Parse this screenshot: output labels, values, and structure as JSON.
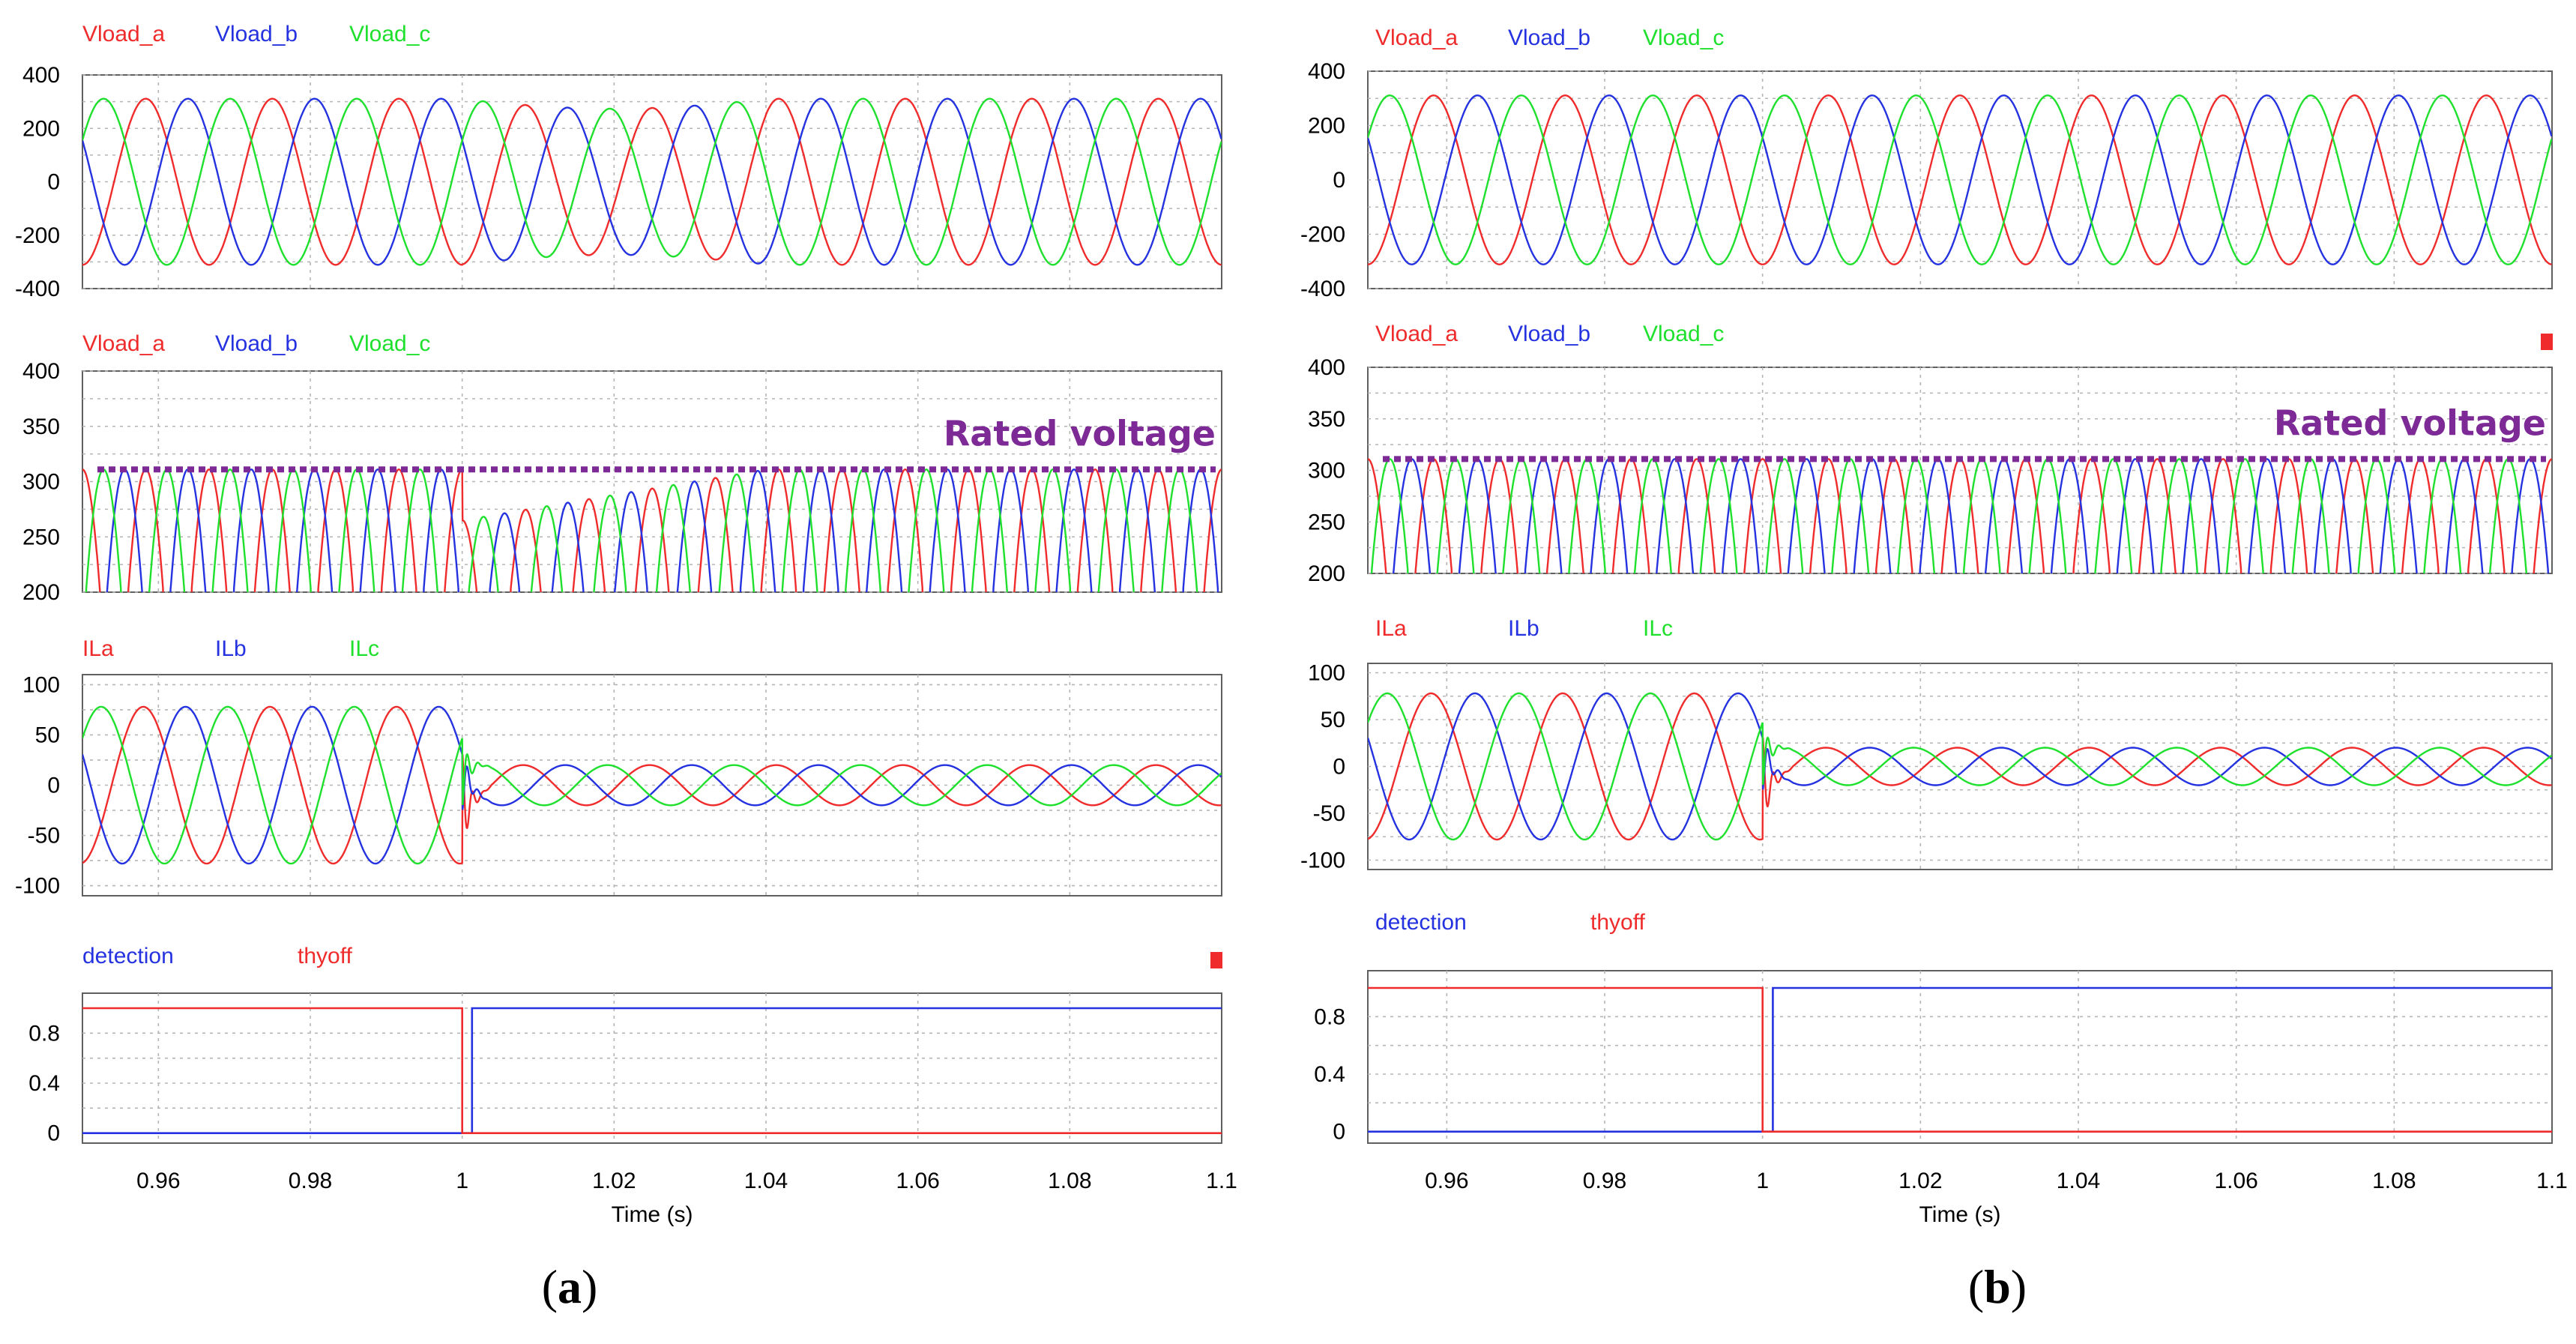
{
  "colors": {
    "a": "#ef2b2b",
    "b": "#2432e0",
    "c": "#1ee02d",
    "rated": "#7d2a96",
    "grid": "#b5b5b5",
    "frame": "#606060"
  },
  "figures": [
    {
      "caption_label": "a",
      "caption_open": "(",
      "caption_close": ")"
    },
    {
      "caption_label": "b",
      "caption_open": "(",
      "caption_close": ")"
    }
  ],
  "x_axis": {
    "label": "Time (s)",
    "ticks": [
      "0.96",
      "0.98",
      "1",
      "1.02",
      "1.04",
      "1.06",
      "1.08",
      "1.1"
    ],
    "range": [
      0.95,
      1.1
    ]
  },
  "annotation": {
    "text": "Rated voltage",
    "value": 311
  },
  "chart_data": [
    {
      "type": "line",
      "panel": "a",
      "title": "",
      "series": [
        {
          "name": "Vload_a",
          "color": "#ef2b2b"
        },
        {
          "name": "Vload_b",
          "color": "#2432e0"
        },
        {
          "name": "Vload_c",
          "color": "#1ee02d"
        }
      ],
      "yticks": [
        "400",
        "200",
        "0",
        "-200",
        "-400"
      ],
      "ylim": [
        -400,
        400
      ],
      "xlim": [
        0.95,
        1.1
      ],
      "amplitude_before": 311,
      "amplitude_after": 311,
      "sag_depth": 0.12,
      "sag_end": 1.04,
      "event_time": 1.0,
      "frequency_hz": 60
    },
    {
      "type": "line",
      "panel": "a",
      "title": "",
      "series": [
        {
          "name": "Vload_a",
          "color": "#ef2b2b"
        },
        {
          "name": "Vload_b",
          "color": "#2432e0"
        },
        {
          "name": "Vload_c",
          "color": "#1ee02d"
        }
      ],
      "yticks": [
        "400",
        "350",
        "300",
        "250",
        "200"
      ],
      "ylim": [
        200,
        400
      ],
      "xlim": [
        0.95,
        1.1
      ],
      "rated_voltage": 311,
      "amplitude_before": 311,
      "sag_min": 265,
      "recovered": 311,
      "event_time": 1.0
    },
    {
      "type": "line",
      "panel": "a",
      "title": "",
      "series": [
        {
          "name": "ILa",
          "color": "#ef2b2b"
        },
        {
          "name": "ILb",
          "color": "#2432e0"
        },
        {
          "name": "ILc",
          "color": "#1ee02d"
        }
      ],
      "yticks": [
        "100",
        "50",
        "0",
        "-50",
        "-100"
      ],
      "ylim": [
        -110,
        110
      ],
      "xlim": [
        0.95,
        1.1
      ],
      "amplitude_before": 78,
      "amplitude_after": 20,
      "event_time": 1.0
    },
    {
      "type": "line",
      "panel": "a",
      "title": "",
      "series": [
        {
          "name": "detection",
          "color": "#2432e0",
          "values": [
            [
              0.95,
              0
            ],
            [
              1.0013,
              0
            ],
            [
              1.0013,
              1
            ],
            [
              1.1,
              1
            ]
          ]
        },
        {
          "name": "thyoff",
          "color": "#ef2b2b",
          "values": [
            [
              0.95,
              1
            ],
            [
              1.0,
              1
            ],
            [
              1.0,
              0
            ],
            [
              1.1,
              0
            ]
          ]
        }
      ],
      "yticks": [
        "0.8",
        "0.4",
        "0"
      ],
      "ylim": [
        -0.08,
        1.12
      ],
      "xlim": [
        0.95,
        1.1
      ]
    },
    {
      "type": "line",
      "panel": "b",
      "title": "",
      "series": [
        {
          "name": "Vload_a",
          "color": "#ef2b2b"
        },
        {
          "name": "Vload_b",
          "color": "#2432e0"
        },
        {
          "name": "Vload_c",
          "color": "#1ee02d"
        }
      ],
      "yticks": [
        "400",
        "200",
        "0",
        "-200",
        "-400"
      ],
      "ylim": [
        -400,
        400
      ],
      "xlim": [
        0.95,
        1.1
      ],
      "amplitude_before": 311,
      "amplitude_after": 311,
      "event_time": 1.0,
      "frequency_hz": 60
    },
    {
      "type": "line",
      "panel": "b",
      "title": "",
      "series": [
        {
          "name": "Vload_a",
          "color": "#ef2b2b"
        },
        {
          "name": "Vload_b",
          "color": "#2432e0"
        },
        {
          "name": "Vload_c",
          "color": "#1ee02d"
        }
      ],
      "yticks": [
        "400",
        "350",
        "300",
        "250",
        "200"
      ],
      "ylim": [
        200,
        400
      ],
      "xlim": [
        0.95,
        1.1
      ],
      "rated_voltage": 311,
      "amplitude_before": 311,
      "amplitude_after": 311,
      "event_time": 1.0
    },
    {
      "type": "line",
      "panel": "b",
      "title": "",
      "series": [
        {
          "name": "ILa",
          "color": "#ef2b2b"
        },
        {
          "name": "ILb",
          "color": "#2432e0"
        },
        {
          "name": "ILc",
          "color": "#1ee02d"
        }
      ],
      "yticks": [
        "100",
        "50",
        "0",
        "-50",
        "-100"
      ],
      "ylim": [
        -110,
        110
      ],
      "xlim": [
        0.95,
        1.1
      ],
      "amplitude_before": 78,
      "amplitude_after": 20,
      "event_time": 1.0
    },
    {
      "type": "line",
      "panel": "b",
      "title": "",
      "series": [
        {
          "name": "detection",
          "color": "#2432e0",
          "values": [
            [
              0.95,
              0
            ],
            [
              1.0013,
              0
            ],
            [
              1.0013,
              1
            ],
            [
              1.1,
              1
            ]
          ]
        },
        {
          "name": "thyoff",
          "color": "#ef2b2b",
          "values": [
            [
              0.95,
              1
            ],
            [
              1.0,
              1
            ],
            [
              1.0,
              0
            ],
            [
              1.1,
              0
            ]
          ]
        }
      ],
      "yticks": [
        "0.8",
        "0.4",
        "0"
      ],
      "ylim": [
        -0.08,
        1.12
      ],
      "xlim": [
        0.95,
        1.1
      ]
    }
  ]
}
